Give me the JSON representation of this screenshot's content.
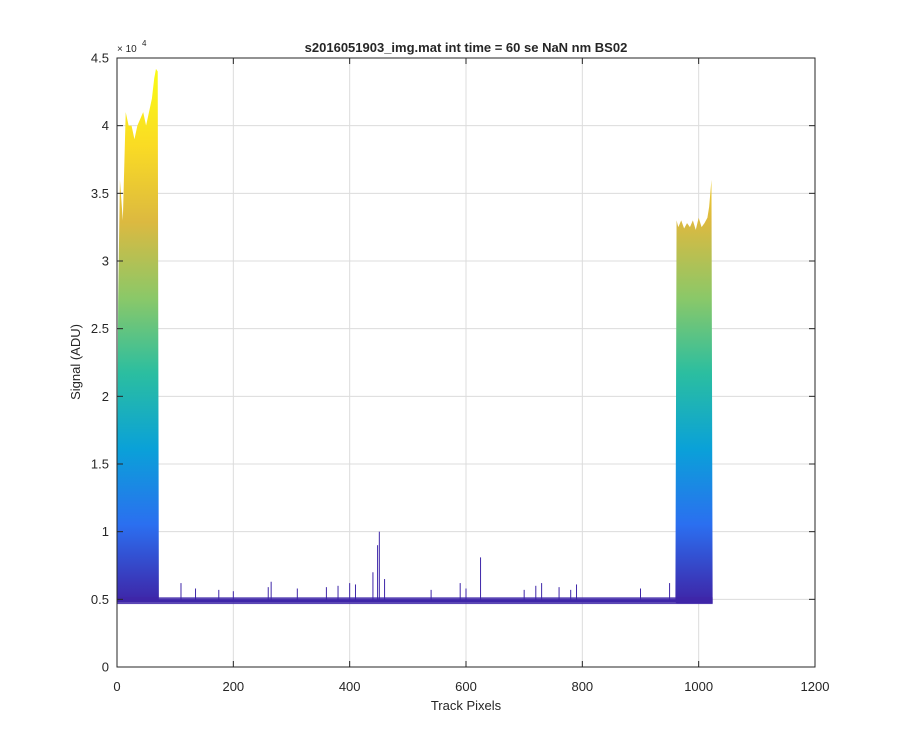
{
  "chart_data": {
    "type": "area",
    "title": "s2016051903_img.mat int time = 60 se  NaN nm BS02",
    "xlabel": "Track Pixels",
    "ylabel": "Signal (ADU)",
    "y_exponent_label": "× 10",
    "y_exponent_power": "4",
    "xlim": [
      0,
      1200
    ],
    "ylim": [
      0,
      45000
    ],
    "x_ticks": [
      0,
      200,
      400,
      600,
      800,
      1000,
      1200
    ],
    "y_ticks": [
      0,
      5000,
      10000,
      15000,
      20000,
      25000,
      30000,
      35000,
      40000,
      45000
    ],
    "x_tick_labels": [
      "0",
      "200",
      "400",
      "600",
      "800",
      "1000",
      "1200"
    ],
    "y_tick_labels": [
      "0",
      "0.5",
      "1",
      "1.5",
      "2",
      "2.5",
      "3",
      "3.5",
      "4",
      "4.5"
    ],
    "grid": true,
    "colormap": [
      "#3e26a8",
      "#2b6ff0",
      "#0aa1d8",
      "#2bbea0",
      "#8bc868",
      "#dcb940",
      "#fadb24",
      "#f9fb15"
    ],
    "baseline": 4900,
    "envelope": {
      "x": [
        0,
        2,
        5,
        10,
        15,
        20,
        25,
        30,
        35,
        40,
        45,
        50,
        55,
        60,
        64,
        67,
        70,
        72,
        960,
        962,
        965,
        970,
        975,
        980,
        985,
        990,
        995,
        1000,
        1005,
        1010,
        1015,
        1018,
        1020,
        1022,
        1024
      ],
      "upper": [
        10000,
        27000,
        36000,
        33000,
        41000,
        40000,
        40000,
        39000,
        40000,
        40500,
        41000,
        40000,
        41000,
        42000,
        43500,
        44200,
        44000,
        5000,
        5000,
        33000,
        32500,
        33000,
        32400,
        32800,
        32500,
        33000,
        32300,
        33200,
        32500,
        32800,
        33200,
        34000,
        35000,
        36000,
        4800
      ],
      "lower": [
        4800,
        4800,
        4800,
        4800,
        4800,
        4800,
        4800,
        4800,
        4800,
        4800,
        4800,
        4800,
        4800,
        4800,
        4800,
        4800,
        4800,
        4800,
        4800,
        4700,
        4700,
        4700,
        4700,
        4700,
        4700,
        4700,
        4700,
        4700,
        4700,
        4700,
        4700,
        4700,
        4700,
        4700,
        4700
      ]
    },
    "spikes": [
      {
        "x": 110,
        "y": 6200
      },
      {
        "x": 135,
        "y": 5800
      },
      {
        "x": 175,
        "y": 5700
      },
      {
        "x": 200,
        "y": 5600
      },
      {
        "x": 260,
        "y": 5900
      },
      {
        "x": 265,
        "y": 6300
      },
      {
        "x": 310,
        "y": 5800
      },
      {
        "x": 360,
        "y": 5900
      },
      {
        "x": 380,
        "y": 6000
      },
      {
        "x": 400,
        "y": 6200
      },
      {
        "x": 410,
        "y": 6100
      },
      {
        "x": 440,
        "y": 7000
      },
      {
        "x": 448,
        "y": 9000
      },
      {
        "x": 451,
        "y": 10000
      },
      {
        "x": 460,
        "y": 6500
      },
      {
        "x": 540,
        "y": 5700
      },
      {
        "x": 590,
        "y": 6200
      },
      {
        "x": 600,
        "y": 5800
      },
      {
        "x": 625,
        "y": 8100
      },
      {
        "x": 700,
        "y": 5700
      },
      {
        "x": 720,
        "y": 6000
      },
      {
        "x": 730,
        "y": 6200
      },
      {
        "x": 760,
        "y": 5900
      },
      {
        "x": 780,
        "y": 5700
      },
      {
        "x": 790,
        "y": 6100
      },
      {
        "x": 900,
        "y": 5800
      },
      {
        "x": 950,
        "y": 6200
      }
    ]
  }
}
